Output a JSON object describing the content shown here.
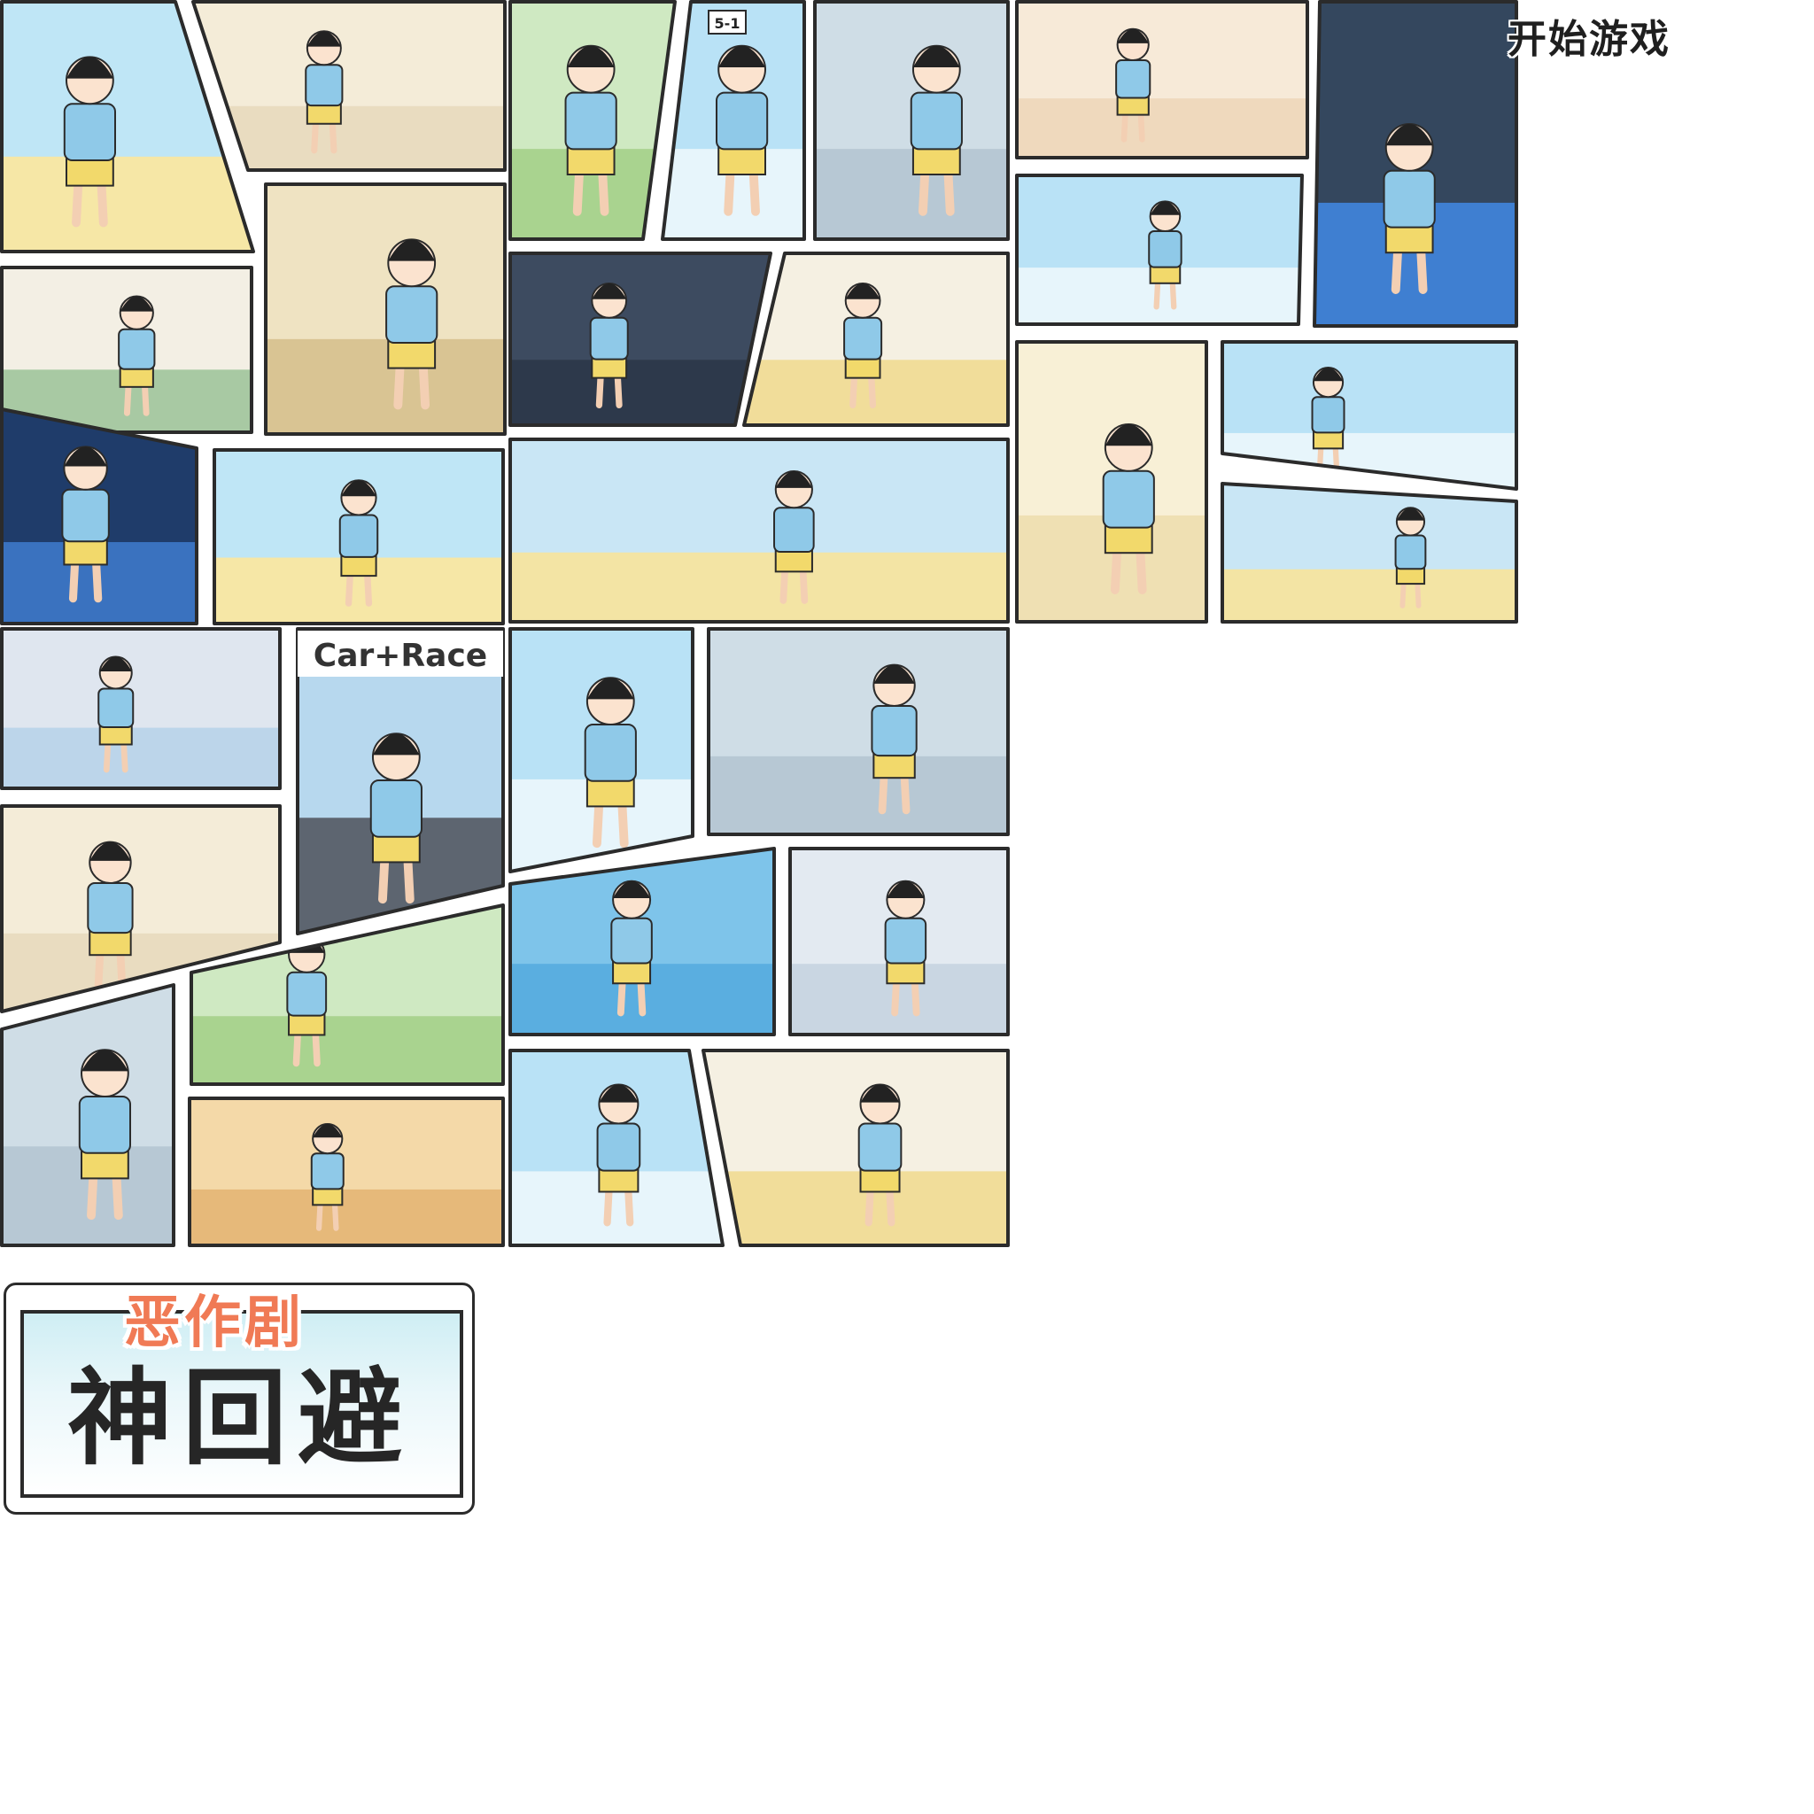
{
  "menu": {
    "start_label": "开始游戏"
  },
  "logo": {
    "subtitle": "恶作剧",
    "title": "神回避"
  },
  "panel_texts": {
    "room_sign": "5-1",
    "race_banner": "Car+Race"
  },
  "colors": {
    "panel_border": "#2b2b2b",
    "subtitle_orange": "#f07a55",
    "sky_blue": "#9fd6f0",
    "sand_yellow": "#f5e6a8",
    "shirt_blue": "#8fc9e8",
    "shorts_yellow": "#f2d96b"
  },
  "panels": [
    {
      "id": "beach-lounge",
      "scene": "beach"
    },
    {
      "id": "barber-shop",
      "scene": "indoor"
    },
    {
      "id": "farm-field",
      "scene": "grass"
    },
    {
      "id": "classroom-door",
      "scene": "sky"
    },
    {
      "id": "graveyard-night-1",
      "scene": "tiles"
    },
    {
      "id": "cooking-pan",
      "scene": "kitchen"
    },
    {
      "id": "wrestling-ring",
      "scene": "arena"
    },
    {
      "id": "low-table-room",
      "scene": "tatami"
    },
    {
      "id": "big-tree-house",
      "scene": "wood"
    },
    {
      "id": "museum-gallery",
      "scene": "dark"
    },
    {
      "id": "supermarket-counter",
      "scene": "shop"
    },
    {
      "id": "outdoor-throw",
      "scene": "sky"
    },
    {
      "id": "straw-hat-plant",
      "scene": "cream"
    },
    {
      "id": "counter-lean",
      "scene": "sky"
    },
    {
      "id": "mirror-room",
      "scene": "mirror"
    },
    {
      "id": "island-rock",
      "scene": "beach"
    },
    {
      "id": "park-pigeons",
      "scene": "park"
    },
    {
      "id": "roof-old-man",
      "scene": "park"
    },
    {
      "id": "bedroom-sleep",
      "scene": "bedroom"
    },
    {
      "id": "car-race",
      "scene": "race"
    },
    {
      "id": "window-snow",
      "scene": "sky"
    },
    {
      "id": "graveyard-zombies",
      "scene": "tiles"
    },
    {
      "id": "classroom-desk",
      "scene": "indoor"
    },
    {
      "id": "swim-ring",
      "scene": "water"
    },
    {
      "id": "winter-snow",
      "scene": "snow"
    },
    {
      "id": "graveyard-night-2",
      "scene": "tiles"
    },
    {
      "id": "apple-crossbow",
      "scene": "grass"
    },
    {
      "id": "bowling-lane",
      "scene": "bowling"
    },
    {
      "id": "balloon-tree",
      "scene": "sky"
    },
    {
      "id": "sushi-conveyor",
      "scene": "shop"
    }
  ]
}
